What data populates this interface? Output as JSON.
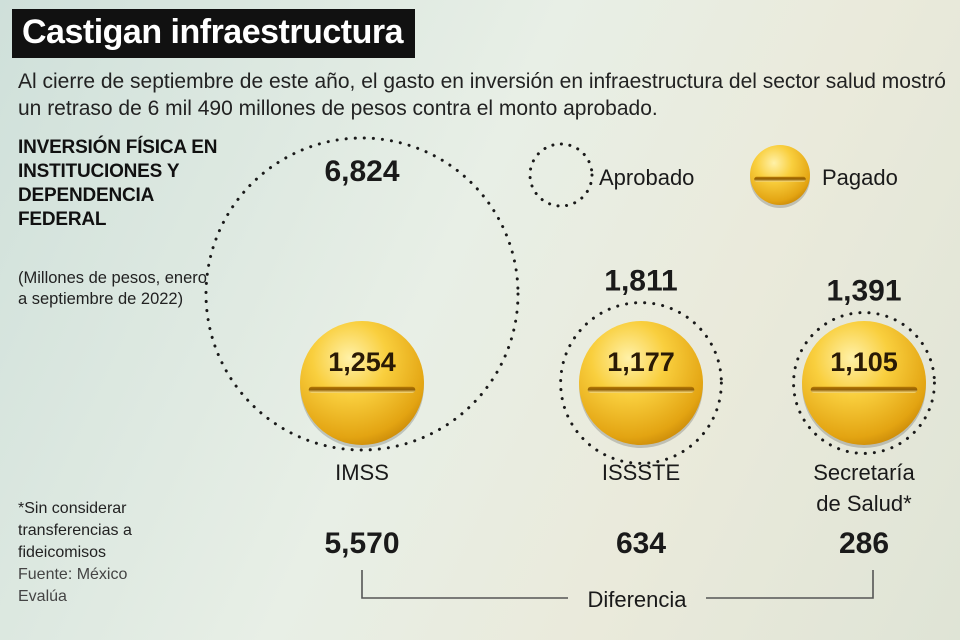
{
  "header": {
    "title": "Castigan infraestructura",
    "subtitle": "Al cierre de septiembre de este año, el gasto en inversión en infraestructura del sector salud mostró un retraso de 6 mil 490 millones de pesos contra el monto aprobado."
  },
  "side": {
    "title": "INVERSIÓN FÍSICA EN INSTITUCIONES Y DEPENDENCIA FEDERAL",
    "unit": "(Millones de pesos, enero a septiembre de 2022)"
  },
  "footnote": {
    "note": "*Sin considerar transferencias a fideicomisos",
    "source": "Fuente: México Evalúa"
  },
  "chart_data": {
    "type": "bubble",
    "legend": {
      "approved": "Aprobado",
      "paid": "Pagado",
      "position": "top-right"
    },
    "categories": [
      {
        "label": "IMSS",
        "approved": 6824,
        "paid": 1254,
        "difference": 5570,
        "approved_text": "6,824",
        "paid_text": "1,254",
        "difference_text": "5,570"
      },
      {
        "label": "ISSSTE",
        "approved": 1811,
        "paid": 1177,
        "difference": 634,
        "approved_text": "1,811",
        "paid_text": "1,177",
        "difference_text": "634"
      },
      {
        "label": "Secretaría de Salud*",
        "label_lines": [
          "Secretaría",
          "de Salud*"
        ],
        "approved": 1391,
        "paid": 1105,
        "difference": 286,
        "approved_text": "1,391",
        "paid_text": "1,105",
        "difference_text": "286"
      }
    ],
    "difference_label": "Diferencia",
    "colors": {
      "pill_light": "#ffe17a",
      "pill_mid": "#f7c42c",
      "pill_dark": "#d8960c",
      "dots": "#1a1a1a"
    }
  }
}
